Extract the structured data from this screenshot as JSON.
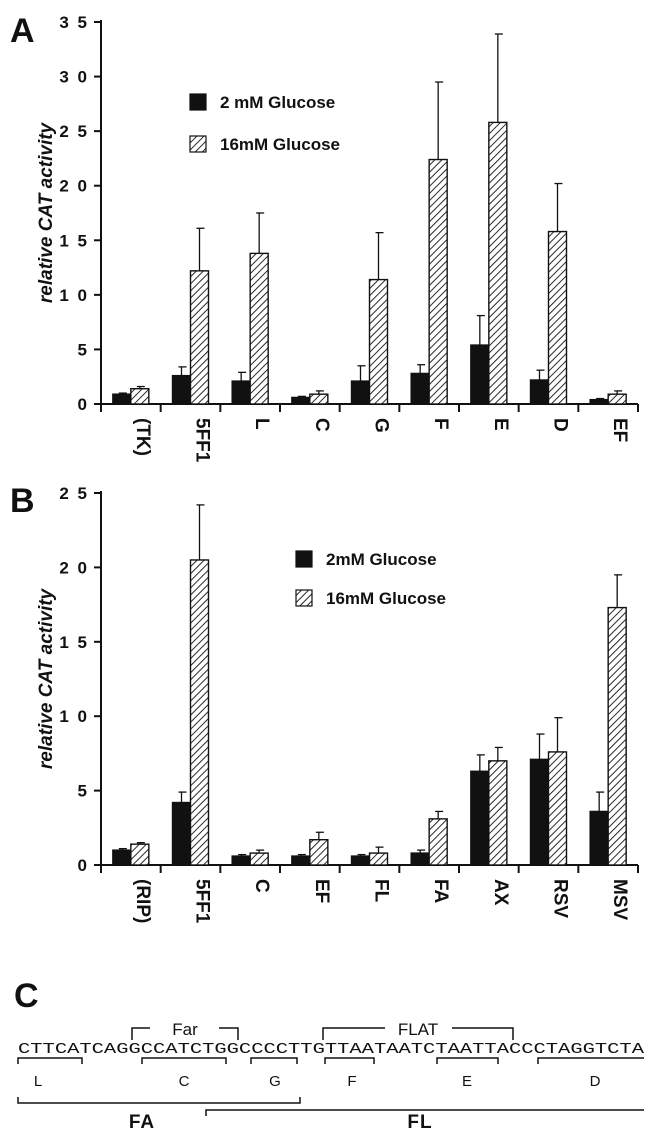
{
  "panels": {
    "a": "A",
    "b": "B",
    "c": "C"
  },
  "chart_data": [
    {
      "type": "bar",
      "panel": "A",
      "ylabel": "relative CAT activity",
      "ylim": [
        0,
        35
      ],
      "yticks": [
        0,
        5,
        10,
        15,
        20,
        25,
        30,
        35
      ],
      "ytick_labels": [
        "0",
        "5",
        "1 0",
        "1 5",
        "2 0",
        "2 5",
        "3 0",
        "3 5"
      ],
      "categories": [
        "(TK)",
        "5FF1",
        "L",
        "C",
        "G",
        "F",
        "E",
        "D",
        "EF"
      ],
      "series": [
        {
          "name": "2  mM  Glucose",
          "pattern": "solid",
          "values": [
            0.9,
            2.6,
            2.1,
            0.6,
            2.1,
            2.8,
            5.4,
            2.2,
            0.4
          ],
          "errors": [
            0.1,
            0.8,
            0.8,
            0.1,
            1.4,
            0.8,
            2.7,
            0.9,
            0.1
          ]
        },
        {
          "name": "16mM   Glucose",
          "pattern": "hatched",
          "values": [
            1.4,
            12.2,
            13.8,
            0.9,
            11.4,
            22.4,
            25.8,
            15.8,
            0.9
          ],
          "errors": [
            0.2,
            3.9,
            3.7,
            0.3,
            4.3,
            7.1,
            8.1,
            4.4,
            0.3
          ]
        }
      ],
      "grid": false,
      "legend_position": "upper-left"
    },
    {
      "type": "bar",
      "panel": "B",
      "ylabel": "relative CAT activity",
      "ylim": [
        0,
        25
      ],
      "yticks": [
        0,
        5,
        10,
        15,
        20,
        25
      ],
      "ytick_labels": [
        "0",
        "5",
        "1 0",
        "1 5",
        "2 0",
        "2 5"
      ],
      "categories": [
        "(RIP)",
        "5FF1",
        "C",
        "EF",
        "FL",
        "FA",
        "AX",
        "RSV",
        "MSV"
      ],
      "series": [
        {
          "name": "2mM   Glucose",
          "pattern": "solid",
          "values": [
            1.0,
            4.2,
            0.6,
            0.6,
            0.6,
            0.8,
            6.3,
            7.1,
            3.6
          ],
          "errors": [
            0.1,
            0.7,
            0.1,
            0.1,
            0.1,
            0.2,
            1.1,
            1.7,
            1.3
          ]
        },
        {
          "name": "16mM   Glucose",
          "pattern": "hatched",
          "values": [
            1.4,
            20.5,
            0.8,
            1.7,
            0.8,
            3.1,
            7.0,
            7.6,
            17.3
          ],
          "errors": [
            0.1,
            3.7,
            0.2,
            0.5,
            0.4,
            0.5,
            0.9,
            2.3,
            2.2
          ]
        }
      ],
      "grid": false,
      "legend_position": "upper-right"
    }
  ],
  "sequence": {
    "text": "CTTCATCAGGCCATCTGGCCCCTTGTTAATAATCTAATTACCCTAGGTCTA",
    "top_spans": [
      "Far",
      "FLAT"
    ],
    "element_labels": [
      "L",
      "C",
      "G",
      "F",
      "E",
      "D"
    ],
    "fragment_labels": [
      "FA",
      "FL"
    ]
  }
}
